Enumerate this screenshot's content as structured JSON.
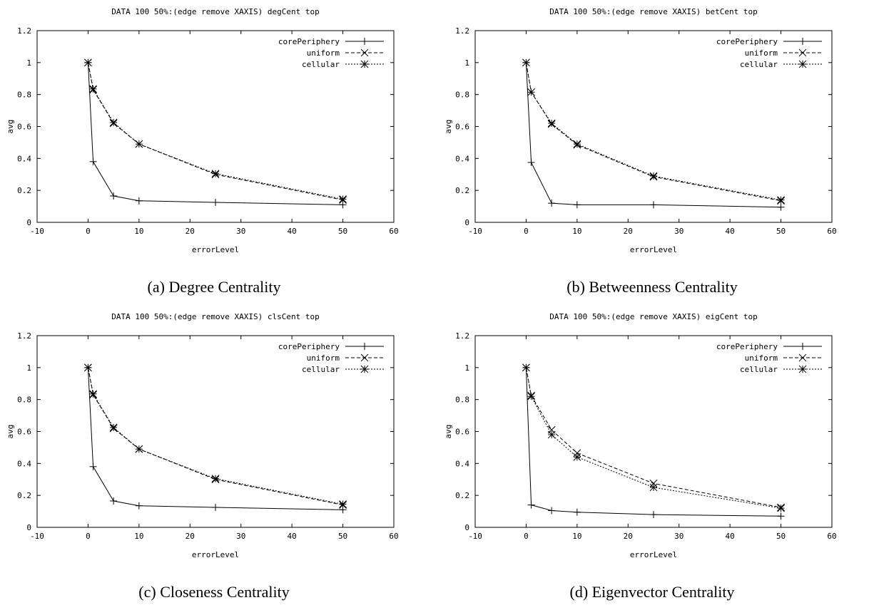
{
  "chart_data": [
    {
      "type": "line",
      "title": "DATA 100 50%:(edge remove XAXIS) degCent top",
      "caption": "(a)  Degree Centrality",
      "xlabel": "errorLevel",
      "ylabel": "avg",
      "xlim": [
        -10,
        60
      ],
      "ylim": [
        0,
        1.2
      ],
      "xticks": [
        "-10",
        "0",
        "10",
        "20",
        "30",
        "40",
        "50",
        "60"
      ],
      "yticks": [
        "0",
        "0.2",
        "0.4",
        "0.6",
        "0.8",
        "1",
        "1.2"
      ],
      "grid": false,
      "legend": "top-right",
      "x": [
        0,
        1,
        5,
        10,
        25,
        50
      ],
      "series": [
        {
          "name": "corePeriphery",
          "marker": "plus",
          "dash": "solid",
          "values": [
            1.0,
            0.38,
            0.165,
            0.135,
            0.125,
            0.11
          ]
        },
        {
          "name": "uniform",
          "marker": "x",
          "dash": "dashed",
          "values": [
            1.0,
            0.83,
            0.62,
            0.49,
            0.3,
            0.14
          ]
        },
        {
          "name": "cellular",
          "marker": "star",
          "dash": "dotted",
          "values": [
            1.0,
            0.835,
            0.625,
            0.49,
            0.305,
            0.145
          ]
        }
      ]
    },
    {
      "type": "line",
      "title": "DATA 100 50%:(edge remove XAXIS) betCent top",
      "caption": "(b) Betweenness Centrality",
      "xlabel": "errorLevel",
      "ylabel": "avg",
      "xlim": [
        -10,
        60
      ],
      "ylim": [
        0,
        1.2
      ],
      "xticks": [
        "-10",
        "0",
        "10",
        "20",
        "30",
        "40",
        "50",
        "60"
      ],
      "yticks": [
        "0",
        "0.2",
        "0.4",
        "0.6",
        "0.8",
        "1",
        "1.2"
      ],
      "grid": false,
      "legend": "top-right",
      "x": [
        0,
        1,
        5,
        10,
        25,
        50
      ],
      "series": [
        {
          "name": "corePeriphery",
          "marker": "plus",
          "dash": "solid",
          "values": [
            1.0,
            0.375,
            0.12,
            0.11,
            0.11,
            0.095
          ]
        },
        {
          "name": "uniform",
          "marker": "x",
          "dash": "dashed",
          "values": [
            1.0,
            0.815,
            0.615,
            0.485,
            0.285,
            0.135
          ]
        },
        {
          "name": "cellular",
          "marker": "star",
          "dash": "dotted",
          "values": [
            1.0,
            0.815,
            0.62,
            0.49,
            0.29,
            0.14
          ]
        }
      ]
    },
    {
      "type": "line",
      "title": "DATA 100 50%:(edge remove XAXIS) clsCent top",
      "caption": "(c)  Closeness Centrality",
      "xlabel": "errorLevel",
      "ylabel": "avg",
      "xlim": [
        -10,
        60
      ],
      "ylim": [
        0,
        1.2
      ],
      "xticks": [
        "-10",
        "0",
        "10",
        "20",
        "30",
        "40",
        "50",
        "60"
      ],
      "yticks": [
        "0",
        "0.2",
        "0.4",
        "0.6",
        "0.8",
        "1",
        "1.2"
      ],
      "grid": false,
      "legend": "top-right",
      "x": [
        0,
        1,
        5,
        10,
        25,
        50
      ],
      "series": [
        {
          "name": "corePeriphery",
          "marker": "plus",
          "dash": "solid",
          "values": [
            1.0,
            0.38,
            0.165,
            0.135,
            0.125,
            0.11
          ]
        },
        {
          "name": "uniform",
          "marker": "x",
          "dash": "dashed",
          "values": [
            1.0,
            0.83,
            0.62,
            0.49,
            0.3,
            0.14
          ]
        },
        {
          "name": "cellular",
          "marker": "star",
          "dash": "dotted",
          "values": [
            1.0,
            0.835,
            0.625,
            0.49,
            0.305,
            0.145
          ]
        }
      ]
    },
    {
      "type": "line",
      "title": "DATA 100 50%:(edge remove XAXIS) eigCent top",
      "caption": "(d) Eigenvector Centrality",
      "xlabel": "errorLevel",
      "ylabel": "avg",
      "xlim": [
        -10,
        60
      ],
      "ylim": [
        0,
        1.2
      ],
      "xticks": [
        "-10",
        "0",
        "10",
        "20",
        "30",
        "40",
        "50",
        "60"
      ],
      "yticks": [
        "0",
        "0.2",
        "0.4",
        "0.6",
        "0.8",
        "1",
        "1.2"
      ],
      "grid": false,
      "legend": "top-right",
      "x": [
        0,
        1,
        5,
        10,
        25,
        50
      ],
      "series": [
        {
          "name": "corePeriphery",
          "marker": "plus",
          "dash": "solid",
          "values": [
            1.0,
            0.14,
            0.105,
            0.095,
            0.08,
            0.07
          ]
        },
        {
          "name": "uniform",
          "marker": "x",
          "dash": "dashed",
          "values": [
            1.0,
            0.825,
            0.61,
            0.465,
            0.275,
            0.125
          ]
        },
        {
          "name": "cellular",
          "marker": "star",
          "dash": "dotted",
          "values": [
            1.0,
            0.82,
            0.58,
            0.44,
            0.25,
            0.12
          ]
        }
      ]
    }
  ]
}
